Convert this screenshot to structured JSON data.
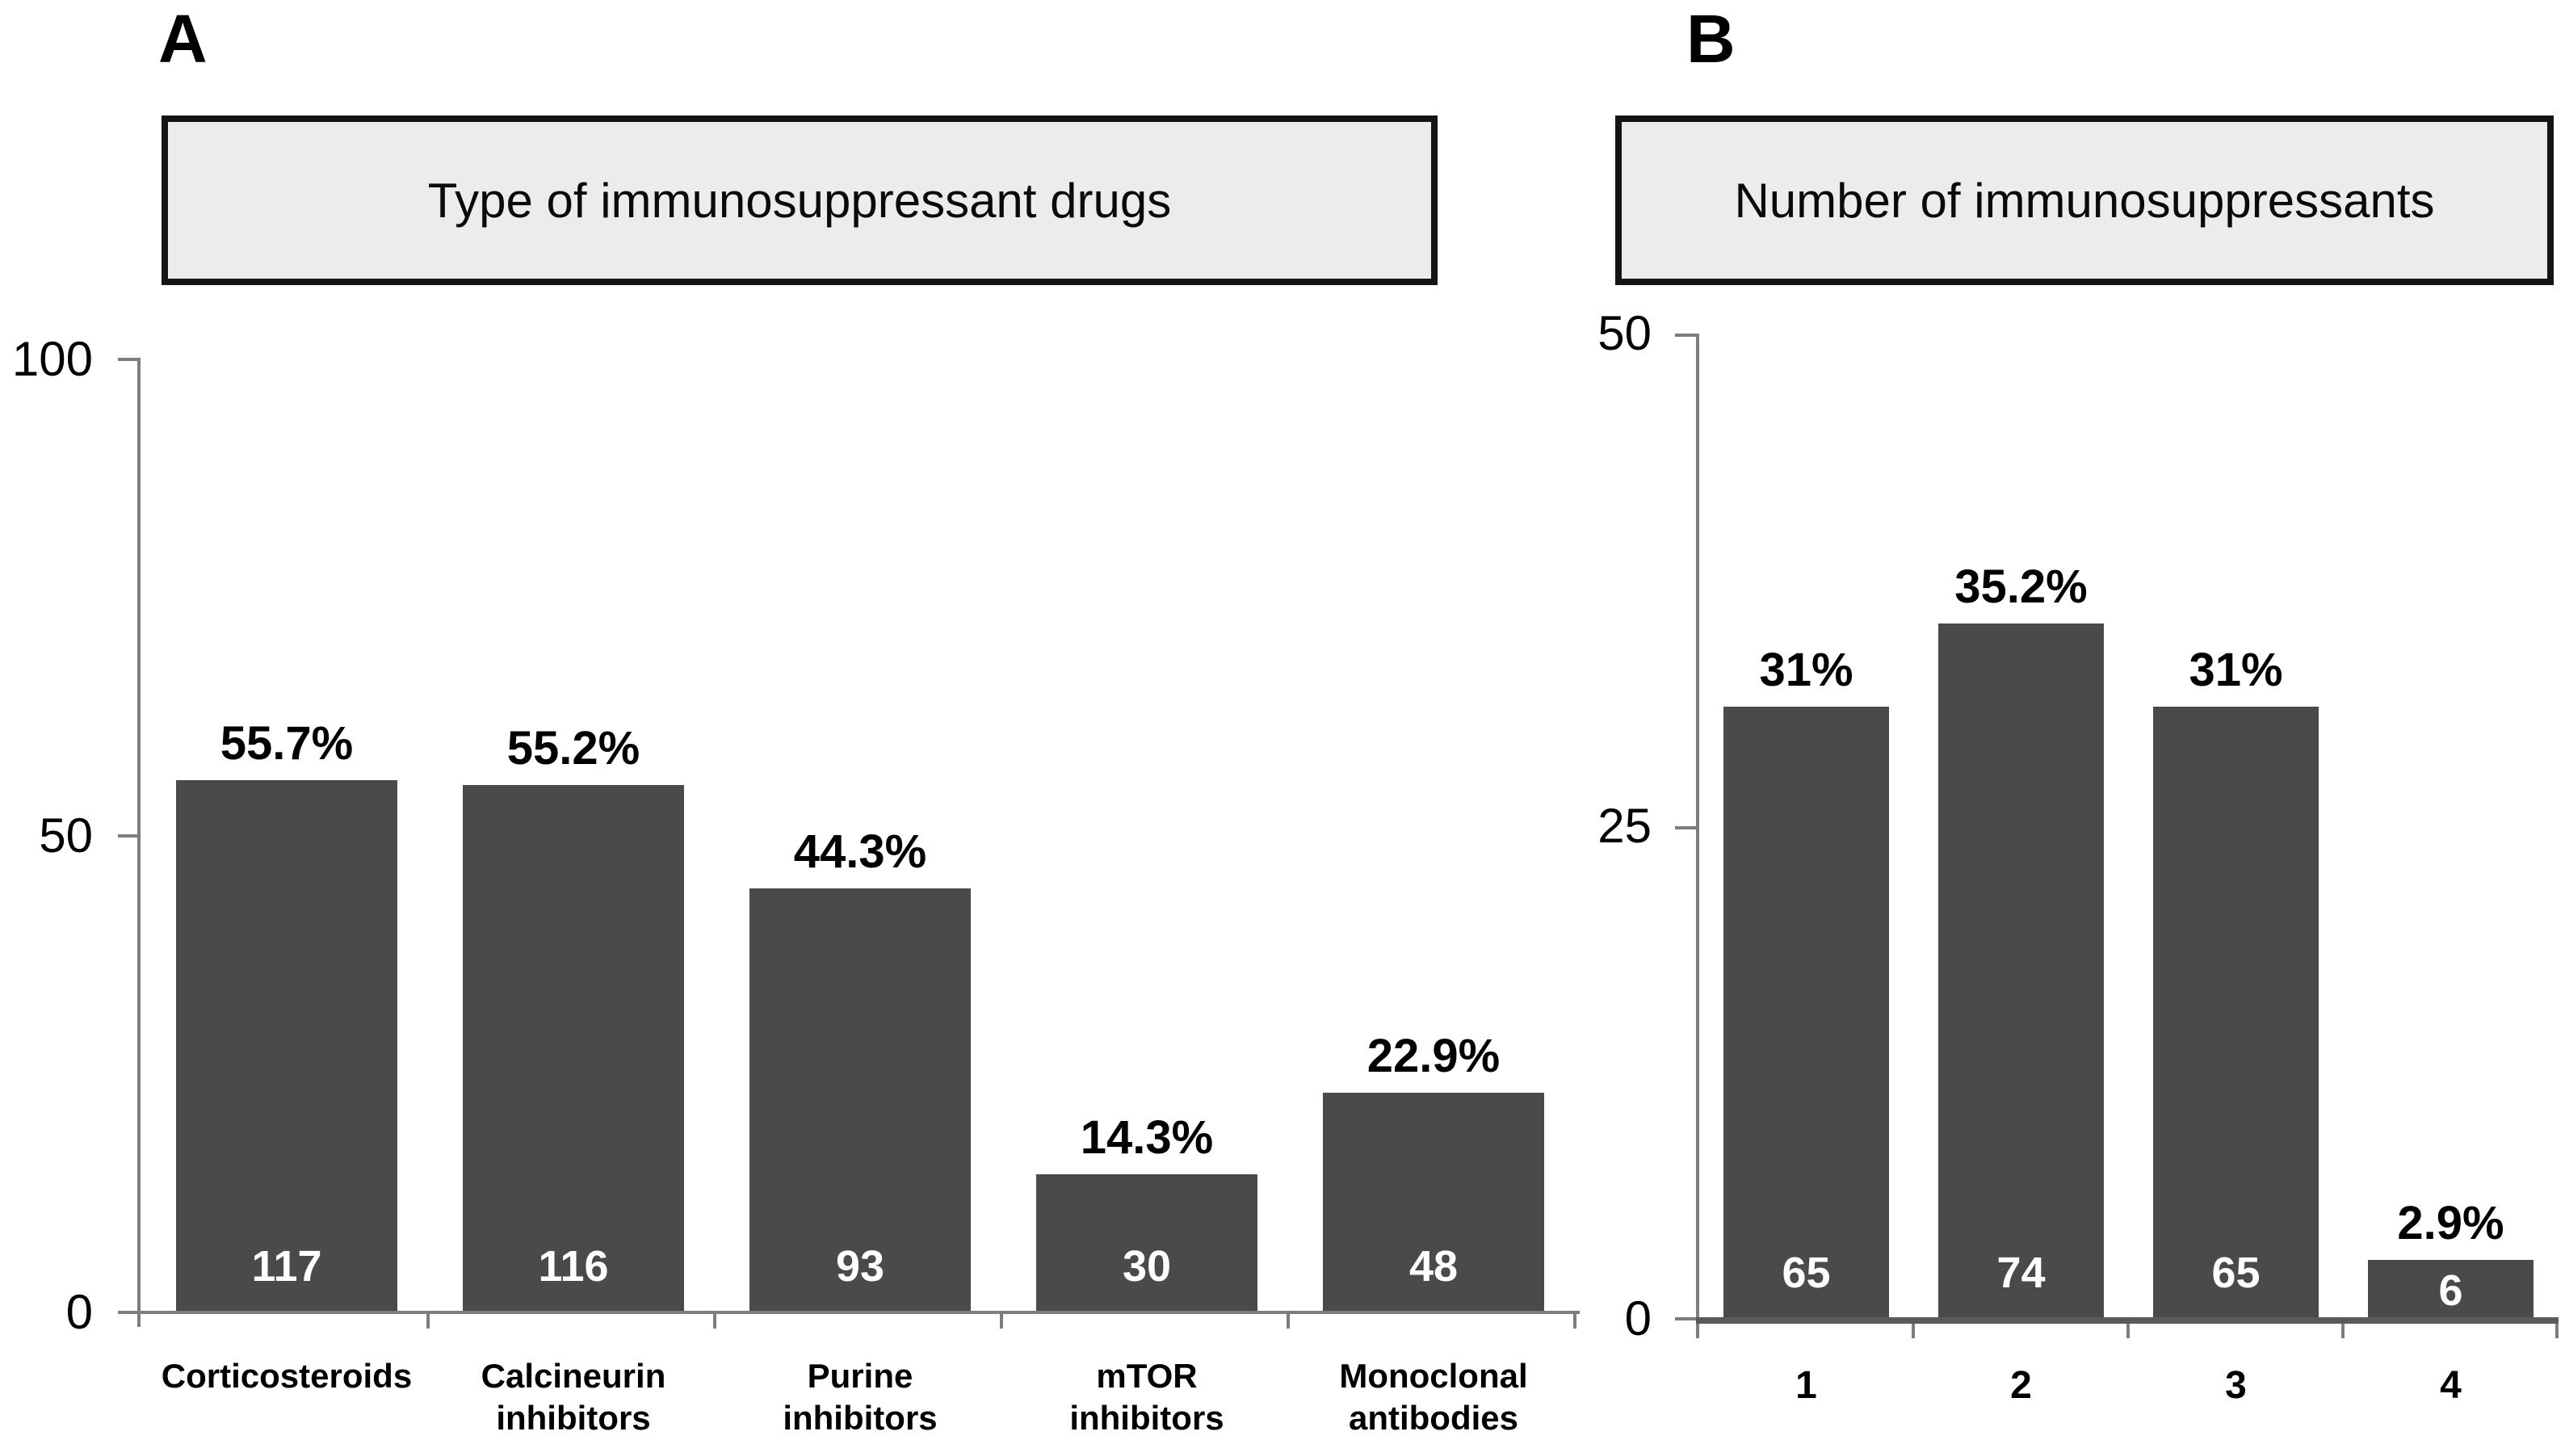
{
  "colors": {
    "bar_fill": "#4a4a4c",
    "axis_line": "#7d7d7d",
    "title_box_fill": "#ececec",
    "title_box_border": "#141414",
    "count_text": "#ffffff",
    "label_text": "#000000"
  },
  "chart_data": [
    {
      "type": "bar",
      "panel": "A",
      "title": "Type of immunosuppressant drugs",
      "categories": [
        "Corticosteroids",
        "Calcineurin inhibitors",
        "Purine inhibitors",
        "mTOR inhibitors",
        "Monoclonal antibodies"
      ],
      "label_lines": [
        [
          "Corticosteroids"
        ],
        [
          "Calcineurin",
          "inhibitors"
        ],
        [
          "Purine",
          "inhibitors"
        ],
        [
          "mTOR",
          "inhibitors"
        ],
        [
          "Monoclonal",
          "antibodies"
        ]
      ],
      "values_pct": [
        55.7,
        55.2,
        44.3,
        14.3,
        22.9
      ],
      "bar_value_labels": [
        "55.7%",
        "55.2%",
        "44.3%",
        "14.3%",
        "22.9%"
      ],
      "counts": [
        117,
        116,
        93,
        30,
        48
      ],
      "xlabel": "",
      "ylabel": "",
      "ylim": [
        0,
        100
      ],
      "yticks": [
        0,
        50,
        100
      ],
      "grid": false,
      "legend": null
    },
    {
      "type": "bar",
      "panel": "B",
      "title": "Number of immunosuppressants",
      "categories": [
        "1",
        "2",
        "3",
        "4"
      ],
      "label_lines": [
        [
          "1"
        ],
        [
          "2"
        ],
        [
          "3"
        ],
        [
          "4"
        ]
      ],
      "values_pct": [
        31,
        35.2,
        31,
        2.9
      ],
      "bar_value_labels": [
        "31%",
        "35.2%",
        "31%",
        "2.9%"
      ],
      "counts": [
        65,
        74,
        65,
        6
      ],
      "xlabel": "",
      "ylabel": "",
      "ylim": [
        0,
        50
      ],
      "yticks": [
        0,
        25,
        50
      ],
      "grid": false,
      "legend": null
    }
  ]
}
